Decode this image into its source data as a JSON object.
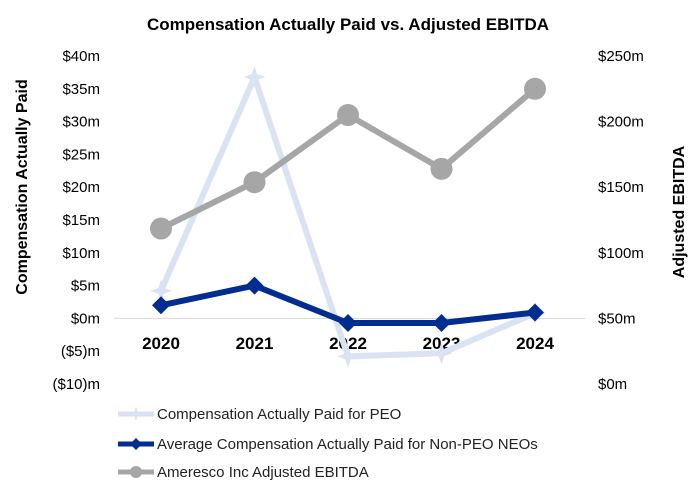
{
  "chart_data": {
    "type": "line",
    "title": "Compensation Actually Paid vs. Adjusted EBITDA",
    "ylabel_left": "Compensation Actually Paid",
    "ylabel_right": "Adjusted EBITDA",
    "categories": [
      "2020",
      "2021",
      "2022",
      "2023",
      "2024"
    ],
    "ylim_left": [
      -10,
      40
    ],
    "ylim_right": [
      0,
      250
    ],
    "yticks_left": [
      {
        "value": 40,
        "label": "$40m"
      },
      {
        "value": 35,
        "label": "$35m"
      },
      {
        "value": 30,
        "label": "$30m"
      },
      {
        "value": 25,
        "label": "$25m"
      },
      {
        "value": 20,
        "label": "$20m"
      },
      {
        "value": 15,
        "label": "$15m"
      },
      {
        "value": 10,
        "label": "$10m"
      },
      {
        "value": 5,
        "label": "$5m"
      },
      {
        "value": 0,
        "label": "$0m"
      },
      {
        "value": -5,
        "label": "($5)m"
      },
      {
        "value": -10,
        "label": "($10)m"
      }
    ],
    "yticks_right": [
      {
        "value": 250,
        "label": "$250m"
      },
      {
        "value": 200,
        "label": "$200m"
      },
      {
        "value": 150,
        "label": "$150m"
      },
      {
        "value": 100,
        "label": "$100m"
      },
      {
        "value": 50,
        "label": "$50m"
      },
      {
        "value": 0,
        "label": "$0m"
      }
    ],
    "grid": false,
    "legend_position": "bottom-left",
    "series": [
      {
        "name": "Compensation Actually Paid for PEO",
        "axis": "left",
        "color": "#dae3f3",
        "marker": "star",
        "values": [
          4.2,
          36.8,
          -5.8,
          -5.3,
          0.8
        ]
      },
      {
        "name": "Average Compensation Actually Paid for Non-PEO NEOs",
        "axis": "left",
        "color": "#002d8f",
        "marker": "diamond",
        "values": [
          2.0,
          5.0,
          -0.7,
          -0.7,
          0.9
        ]
      },
      {
        "name": "Ameresco Inc Adjusted EBITDA",
        "axis": "right",
        "color": "#a6a6a6",
        "marker": "circle",
        "values": [
          118.5,
          153.8,
          205.0,
          164.0,
          225.0
        ]
      }
    ]
  }
}
